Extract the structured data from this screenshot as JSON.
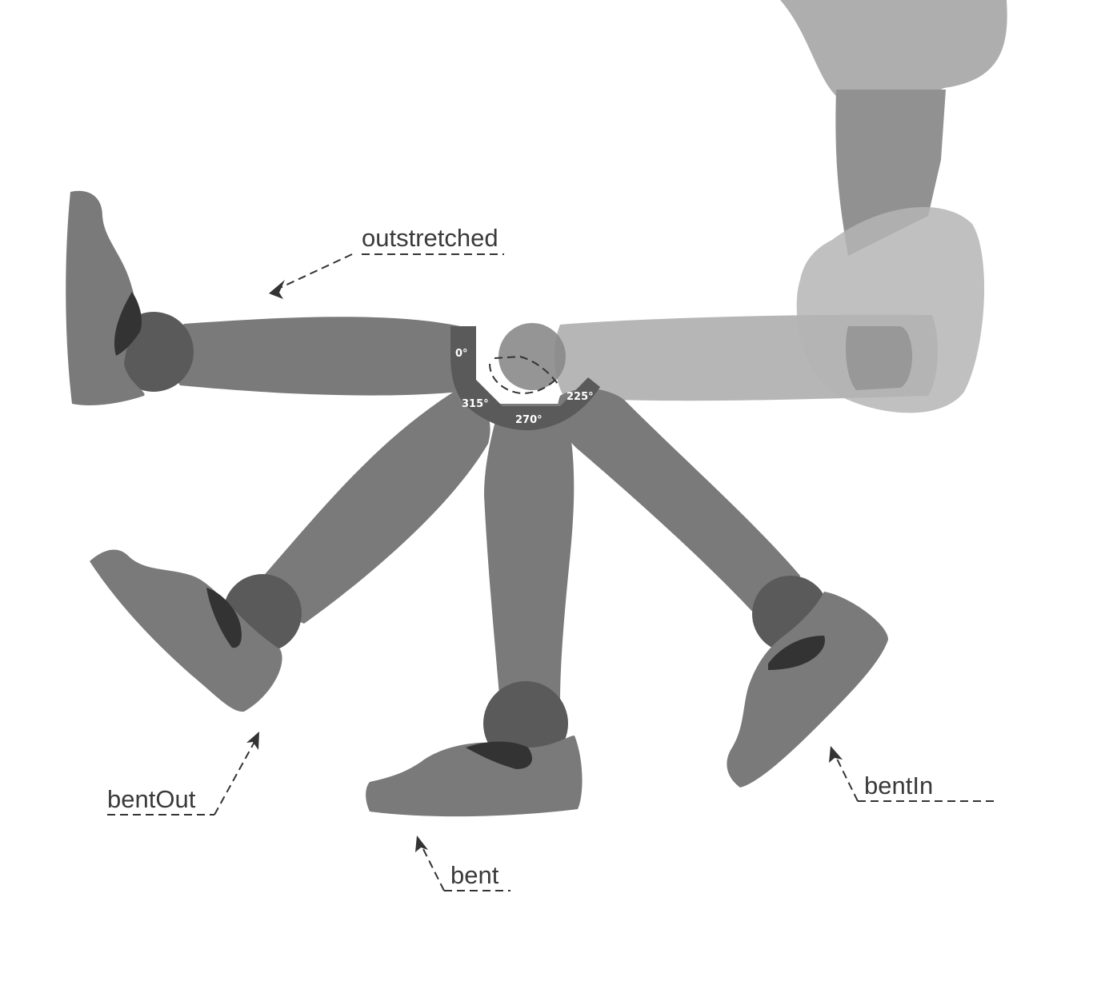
{
  "diagram": {
    "labels": {
      "outstretched": "outstretched",
      "bent_out": "bentOut",
      "bent": "bent",
      "bent_in": "bentIn"
    },
    "angles": {
      "a0": "0°",
      "a315": "315°",
      "a270": "270°",
      "a225": "225°"
    }
  },
  "colors": {
    "leg": "#7a7a7a",
    "joint": "#5a5a5a",
    "shadow": "#333333",
    "ghost_pants": "#aaaaaa",
    "ghost_thigh": "#8c8c8c",
    "ghost_hand": "#b8b8b8",
    "hub": "#5a5a5a"
  }
}
